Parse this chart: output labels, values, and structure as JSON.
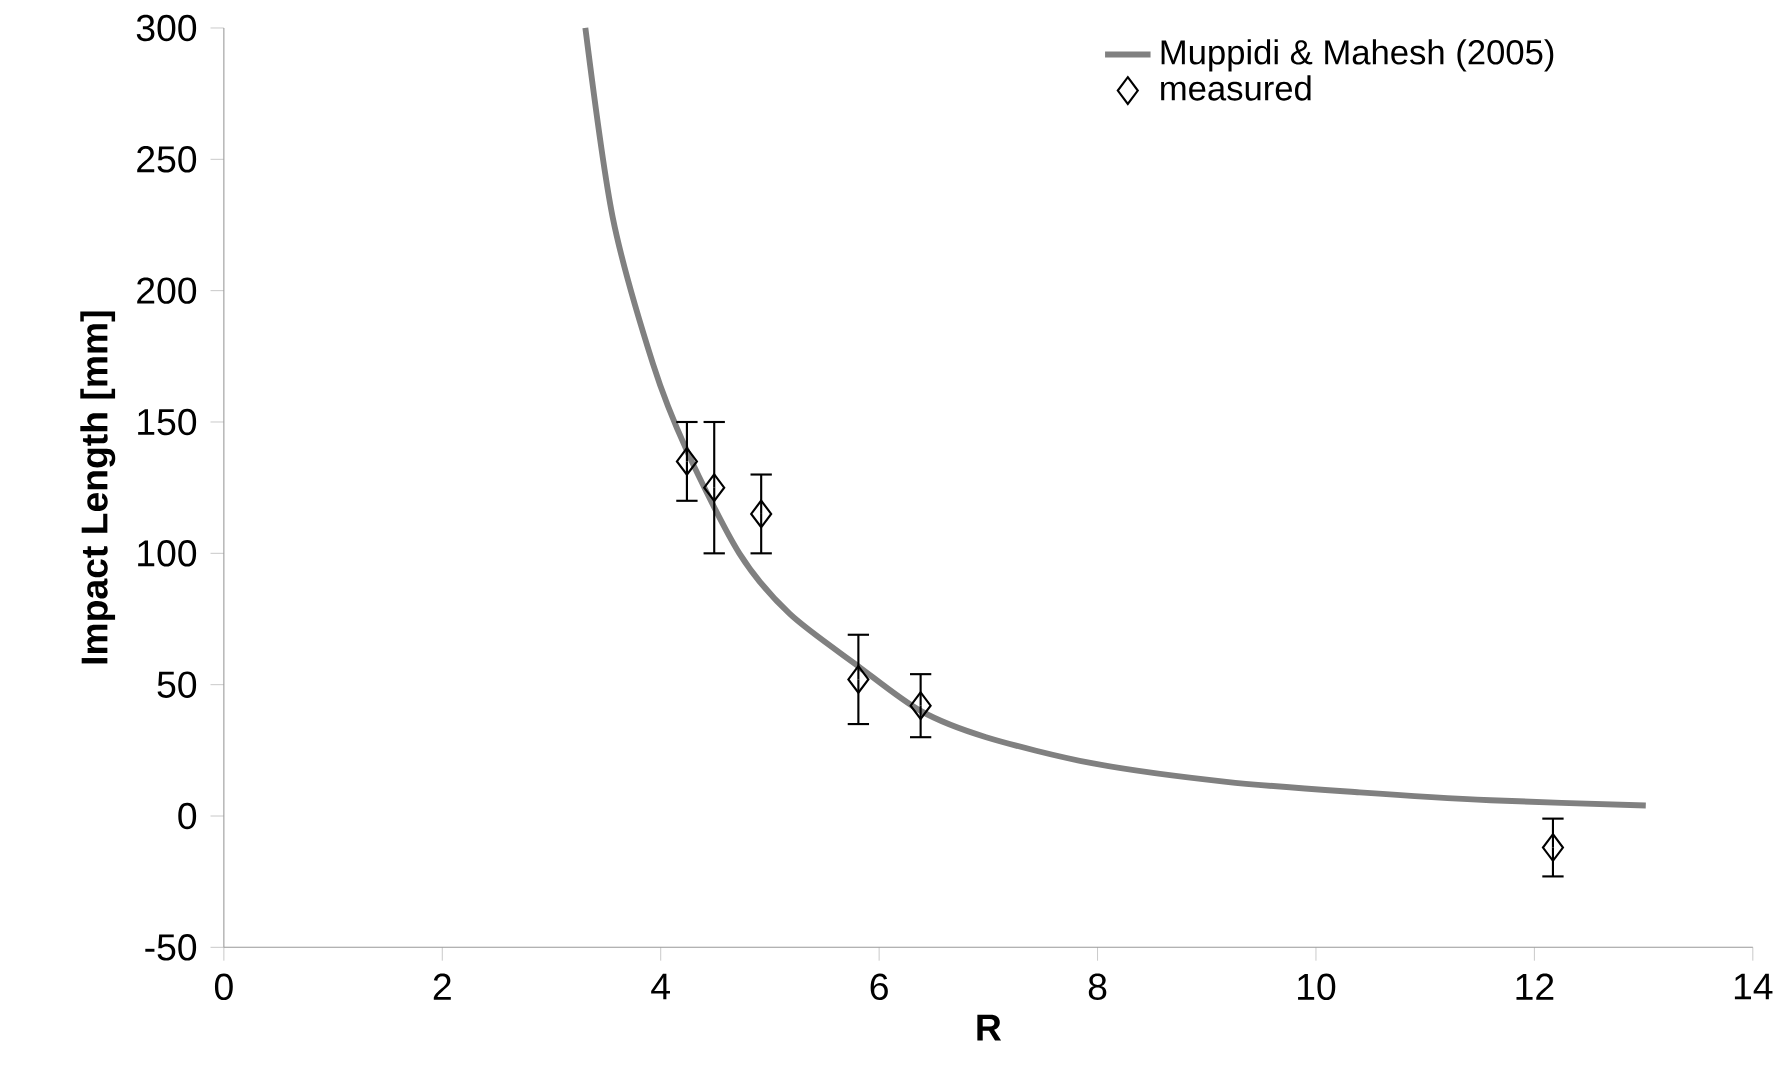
{
  "chart_data": {
    "type": "scatter",
    "xlabel": "R",
    "ylabel": "Impact Length [mm]",
    "xlim": [
      0,
      14
    ],
    "ylim": [
      -50,
      300
    ],
    "xticks": [
      0,
      2,
      4,
      6,
      8,
      10,
      12,
      14
    ],
    "yticks": [
      -50,
      0,
      50,
      100,
      150,
      200,
      250,
      300
    ],
    "grid": false,
    "legend": "top right",
    "series": [
      {
        "name": "Muppidi & Mahesh (2005)",
        "type": "line",
        "color": "#808080",
        "marker": "none",
        "line_style": "solid",
        "x": [
          3.31,
          3.56,
          3.93,
          4.24,
          4.72,
          5.18,
          5.81,
          6.38,
          6.98,
          7.96,
          9.18,
          10.4,
          11.6,
          13.02
        ],
        "values": [
          300,
          228,
          172,
          139,
          100,
          77,
          57,
          40,
          30,
          20,
          13,
          9,
          6,
          4
        ]
      },
      {
        "name": "measured",
        "color": "#000000",
        "marker": "diamond",
        "x": [
          4.24,
          4.49,
          4.92,
          5.81,
          6.38,
          12.17
        ],
        "values": [
          135,
          125,
          115,
          52,
          42,
          -12
        ],
        "errors": [
          15,
          25,
          15,
          17,
          12,
          11
        ]
      }
    ]
  }
}
